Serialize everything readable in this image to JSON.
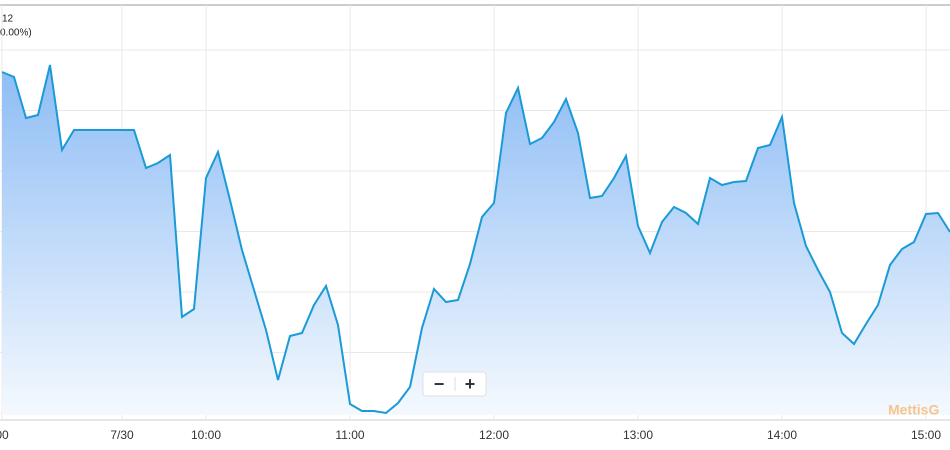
{
  "chart_data": {
    "type": "area",
    "annotations": [
      "12",
      "0.00%)",
      "MettisG"
    ],
    "controls": [
      "−",
      "+"
    ],
    "color": "#1a9ad6",
    "categories": [
      "00",
      null,
      null,
      null,
      null,
      null,
      null,
      null,
      null,
      null,
      "7/30",
      null,
      null,
      null,
      null,
      null,
      null,
      "10:00",
      null,
      null,
      null,
      null,
      null,
      null,
      null,
      null,
      null,
      null,
      null,
      "11:00",
      null,
      null,
      null,
      null,
      null,
      null,
      null,
      null,
      null,
      null,
      null,
      "12:00",
      null,
      null,
      null,
      null,
      null,
      null,
      null,
      null,
      null,
      null,
      null,
      "13:00",
      null,
      null,
      null,
      null,
      null,
      null,
      null,
      null,
      null,
      null,
      null,
      "14:00",
      null,
      null,
      null,
      null,
      null,
      null,
      null,
      null,
      null,
      null,
      null,
      "15:00",
      null,
      null
    ],
    "values": [
      343,
      338,
      297,
      300,
      350,
      265,
      285,
      285,
      285,
      285,
      285,
      285,
      247,
      252,
      260,
      98,
      106,
      237,
      263,
      215,
      165,
      125,
      85,
      35,
      79,
      82,
      110,
      129,
      90,
      11,
      4,
      4,
      2,
      12,
      28,
      87,
      126,
      113,
      115,
      151,
      198,
      212,
      302,
      327,
      271,
      277,
      293,
      316,
      282,
      217,
      219,
      237,
      259,
      189,
      162,
      193,
      208,
      202,
      191,
      237,
      230,
      233,
      234,
      267,
      270,
      298,
      212,
      169,
      145,
      123,
      82,
      71,
      91,
      110,
      150,
      166,
      173,
      201,
      202,
      183
    ],
    "ylim": [
      0,
      410
    ],
    "grid": true
  }
}
